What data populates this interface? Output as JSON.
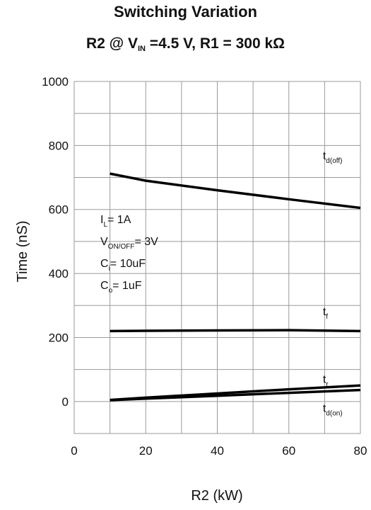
{
  "chart_data": {
    "type": "line",
    "title": "Switching Variation",
    "subtitle_parts": {
      "a": "R2 @ V",
      "sub": "IN",
      "b": " =4.5 V, R1 = 300 kΩ"
    },
    "xlabel": "R2 (kW)",
    "ylabel": "Time (nS)",
    "xlim": [
      0,
      80
    ],
    "ylim": [
      -100,
      1000
    ],
    "xticks": [
      "0",
      "20",
      "40",
      "60",
      "80"
    ],
    "yticks": [
      "0",
      "200",
      "400",
      "600",
      "800",
      "1000"
    ],
    "grid": true,
    "series": [
      {
        "name": "td(off)",
        "label_main": "t",
        "label_sub": "d(off)",
        "x": [
          10,
          20,
          40,
          60,
          80
        ],
        "values": [
          712,
          690,
          660,
          632,
          605
        ]
      },
      {
        "name": "tf",
        "label_main": "t",
        "label_sub": "f",
        "x": [
          10,
          20,
          40,
          60,
          80
        ],
        "values": [
          220,
          221,
          222,
          223,
          220
        ]
      },
      {
        "name": "tr",
        "label_main": "t",
        "label_sub": "r",
        "x": [
          10,
          20,
          40,
          60,
          80
        ],
        "values": [
          5,
          12,
          25,
          38,
          50
        ]
      },
      {
        "name": "td(on)",
        "label_main": "t",
        "label_sub": "d(on)",
        "x": [
          10,
          20,
          40,
          60,
          80
        ],
        "values": [
          4,
          9,
          18,
          27,
          36
        ]
      }
    ],
    "conditions": [
      {
        "main": "I",
        "sub": "L",
        "rest": "= 1A"
      },
      {
        "main": "V",
        "sub": "ON/OFF",
        "rest": "= 3V"
      },
      {
        "main": "C",
        "sub": "i",
        "rest": "= 10uF"
      },
      {
        "main": "C",
        "sub": "o",
        "rest": "= 1uF"
      }
    ]
  }
}
